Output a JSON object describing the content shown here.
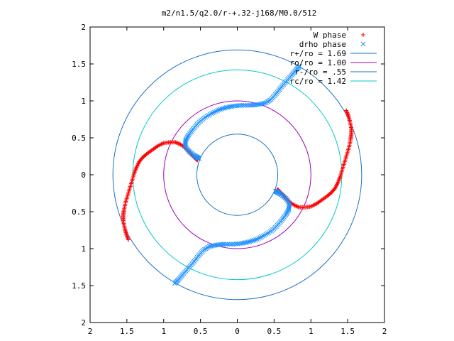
{
  "chart_data": {
    "type": "scatter",
    "title": "m2/n1.5/q2.0/r-+.32-j168/M0.0/512",
    "xlabel": "",
    "ylabel": "",
    "xlim": [
      -2,
      2
    ],
    "ylim": [
      -2,
      2
    ],
    "x_ticks": [
      -2,
      -1.5,
      -1,
      -0.5,
      0,
      0.5,
      1,
      1.5,
      2
    ],
    "y_ticks": [
      -2,
      -1.5,
      -1,
      -0.5,
      0,
      0.5,
      1,
      1.5,
      2
    ],
    "x_tick_labels": [
      "2",
      "1.5",
      "1",
      "0.5",
      "0",
      "0.5",
      "1",
      "1.5",
      "2"
    ],
    "y_tick_labels": [
      "2",
      "1.5",
      "1",
      "0.5",
      "0",
      "0.5",
      "1",
      "1.5",
      "2"
    ],
    "grid": false,
    "legend_position": "top-right",
    "legend": [
      {
        "label": "W phase",
        "kind": "marker",
        "marker": "plus",
        "color": "#ff0000"
      },
      {
        "label": "drho phase",
        "kind": "marker",
        "marker": "cross",
        "color": "#1e90ff"
      },
      {
        "label": "r+/ro = 1.69",
        "kind": "line",
        "color": "#1a70c8"
      },
      {
        "label": "ro/ro = 1.00",
        "kind": "line",
        "color": "#a000c0"
      },
      {
        "label": "r-/ro = .55",
        "kind": "line",
        "color": "#1a70c8"
      },
      {
        "label": "rc/ro = 1.42",
        "kind": "line",
        "color": "#00c8c8"
      }
    ],
    "circles": [
      {
        "radius": 1.69,
        "color": "#1a70c8"
      },
      {
        "radius": 1.42,
        "color": "#00c8c8"
      },
      {
        "radius": 1.0,
        "color": "#a000c0"
      },
      {
        "radius": 0.55,
        "color": "#1a70c8"
      }
    ],
    "series": [
      {
        "name": "W phase",
        "color": "#ff0000",
        "marker": "plus",
        "points": [
          [
            -1.48,
            -0.88
          ],
          [
            -1.51,
            -0.8
          ],
          [
            -1.53,
            -0.72
          ],
          [
            -1.55,
            -0.62
          ],
          [
            -1.55,
            -0.55
          ],
          [
            -1.54,
            -0.48
          ],
          [
            -1.52,
            -0.38
          ],
          [
            -1.49,
            -0.28
          ],
          [
            -1.46,
            -0.18
          ],
          [
            -1.43,
            -0.08
          ],
          [
            -1.4,
            0.02
          ],
          [
            -1.37,
            0.1
          ],
          [
            -1.33,
            0.18
          ],
          [
            -1.28,
            0.24
          ],
          [
            -1.22,
            0.29
          ],
          [
            -1.15,
            0.34
          ],
          [
            -1.08,
            0.39
          ],
          [
            -1.0,
            0.43
          ],
          [
            -0.92,
            0.44
          ],
          [
            -0.84,
            0.44
          ],
          [
            -0.77,
            0.41
          ],
          [
            -0.7,
            0.36
          ],
          [
            -0.64,
            0.3
          ],
          [
            -0.6,
            0.25
          ],
          [
            -0.56,
            0.21
          ],
          [
            -0.54,
            0.2
          ],
          [
            1.48,
            0.87
          ],
          [
            1.51,
            0.8
          ],
          [
            1.53,
            0.72
          ],
          [
            1.55,
            0.62
          ],
          [
            1.55,
            0.55
          ],
          [
            1.54,
            0.48
          ],
          [
            1.52,
            0.38
          ],
          [
            1.49,
            0.28
          ],
          [
            1.46,
            0.18
          ],
          [
            1.43,
            0.08
          ],
          [
            1.4,
            -0.02
          ],
          [
            1.37,
            -0.1
          ],
          [
            1.33,
            -0.18
          ],
          [
            1.28,
            -0.24
          ],
          [
            1.22,
            -0.29
          ],
          [
            1.15,
            -0.34
          ],
          [
            1.08,
            -0.39
          ],
          [
            1.0,
            -0.43
          ],
          [
            0.92,
            -0.44
          ],
          [
            0.84,
            -0.44
          ],
          [
            0.77,
            -0.41
          ],
          [
            0.7,
            -0.36
          ],
          [
            0.64,
            -0.3
          ],
          [
            0.6,
            -0.25
          ],
          [
            0.56,
            -0.21
          ],
          [
            0.54,
            -0.2
          ]
        ]
      },
      {
        "name": "drho phase",
        "color": "#1e90ff",
        "marker": "cross",
        "points": [
          [
            -0.85,
            -1.47
          ],
          [
            -0.8,
            -1.42
          ],
          [
            -0.74,
            -1.35
          ],
          [
            -0.67,
            -1.27
          ],
          [
            -0.6,
            -1.19
          ],
          [
            -0.53,
            -1.1
          ],
          [
            -0.46,
            -1.02
          ],
          [
            -0.38,
            -0.97
          ],
          [
            -0.28,
            -0.95
          ],
          [
            -0.18,
            -0.94
          ],
          [
            -0.06,
            -0.94
          ],
          [
            0.05,
            -0.93
          ],
          [
            0.15,
            -0.91
          ],
          [
            0.25,
            -0.88
          ],
          [
            0.35,
            -0.83
          ],
          [
            0.45,
            -0.77
          ],
          [
            0.53,
            -0.7
          ],
          [
            0.6,
            -0.62
          ],
          [
            0.66,
            -0.54
          ],
          [
            0.7,
            -0.47
          ],
          [
            0.71,
            -0.39
          ],
          [
            0.66,
            -0.32
          ],
          [
            0.6,
            -0.27
          ],
          [
            0.55,
            -0.24
          ],
          [
            0.52,
            -0.22
          ],
          [
            0.85,
            1.47
          ],
          [
            0.8,
            1.42
          ],
          [
            0.74,
            1.35
          ],
          [
            0.67,
            1.27
          ],
          [
            0.6,
            1.19
          ],
          [
            0.53,
            1.1
          ],
          [
            0.46,
            1.02
          ],
          [
            0.38,
            0.97
          ],
          [
            0.28,
            0.95
          ],
          [
            0.18,
            0.94
          ],
          [
            0.06,
            0.94
          ],
          [
            -0.05,
            0.93
          ],
          [
            -0.15,
            0.91
          ],
          [
            -0.25,
            0.88
          ],
          [
            -0.35,
            0.83
          ],
          [
            -0.45,
            0.77
          ],
          [
            -0.53,
            0.7
          ],
          [
            -0.6,
            0.62
          ],
          [
            -0.66,
            0.54
          ],
          [
            -0.7,
            0.47
          ],
          [
            -0.71,
            0.39
          ],
          [
            -0.66,
            0.32
          ],
          [
            -0.6,
            0.27
          ],
          [
            -0.55,
            0.24
          ],
          [
            -0.52,
            0.22
          ]
        ]
      }
    ]
  }
}
